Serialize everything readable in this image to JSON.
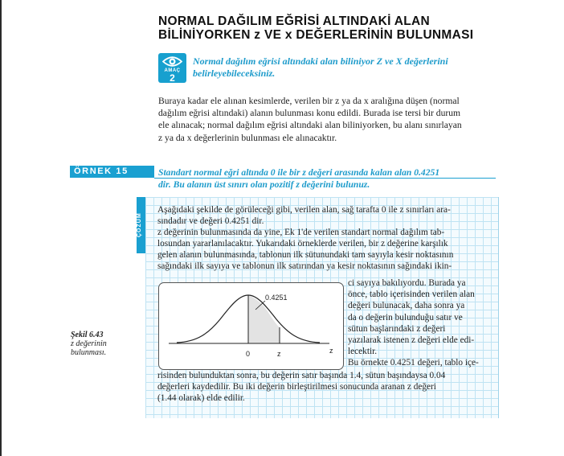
{
  "title": {
    "line1": "NORMAL  DAĞILIM  EĞRİSİ  ALTINDAKİ ALAN",
    "line2": "BİLİNİYORKEN  z  VE  x  DEĞERLERİNİN BULUNMASI"
  },
  "amac": {
    "label": "AMAÇ",
    "number": "2",
    "icon": "eye-icon",
    "line1": "Normal dağılım eğrisi altındaki alan biliniyor  Z ve X değerlerini",
    "line2": "belirleyebileceksiniz."
  },
  "intro": {
    "line1": "Buraya kadar ele alınan kesimlerde, verilen bir z ya da x aralığına düşen (normal",
    "line2": "dağılım eğrisi altındaki) alanın bulunması konu edildi. Burada ise tersi bir durum",
    "line3": "ele alınacak; normal dağılım eğrisi altındaki alan biliniyorken, bu alanı sınırlayan",
    "line4": "z ya da x değerlerinin bulunması ele alınacaktır."
  },
  "ornek": {
    "label": "ÖRNEK  15",
    "line1": "Standart normal eğri altında 0 ile bir  z  değeri arasında kalan alan 0.4251",
    "line2": "dir. Bu alanın üst sınırı olan pozitif  z  değerini bulunuz."
  },
  "cozum": {
    "label": "ÇÖZÜM"
  },
  "solution": {
    "lines_full": [
      "Aşağıdaki şekilde de görüleceği gibi, verilen alan, sağ tarafta 0 ile z sınırları ara-",
      "sındadır ve değeri 0.4251 dir.",
      "z değerinin bulunmasında da yine, Ek 1'de verilen standart normal dağılım tab-",
      "losundan yararlanılacaktır. Yukarıdaki örneklerde verilen, bir z  değerine karşılık",
      "gelen alanın bulunmasında, tablonun ilk sütunundaki tam sayıyla kesir noktasının",
      "sağındaki ilk sayıya ve tablonun ilk satırından ya kesir noktasının sağındaki ikin-"
    ],
    "lines_right": [
      "ci sayıya bakılıyordu. Burada ya",
      "önce, tablo içerisinden verilen alan",
      "değeri bulunacak, daha sonra ya",
      "da o değerin bulunduğu satır ve",
      "sütun  başlarındaki  z  değeri",
      "yazılarak istenen z değeri elde edi-",
      "lecektir.",
      "Bu örnekte 0.4251 değeri, tablo içe-"
    ],
    "lines_bottom": [
      "risinden bulunduktan sonra, bu değerin satır başında 1.4, sütun başındaysa 0.04",
      "değerleri kaydedilir. Bu iki değerin birleştirilmesi sonucunda aranan z  değeri",
      "(1.44 olarak) elde edilir."
    ]
  },
  "figure": {
    "area_label": "0.4251",
    "tick_zero": "0",
    "tick_z": "z",
    "axis_label": "z",
    "shade_color": "#e3e3e3"
  },
  "caption": {
    "title": "Şekil 6.43",
    "line1": "z değerinin",
    "line2": "bulunması."
  },
  "colors": {
    "accent": "#1aa0d1",
    "grid": "#bfe3f3"
  }
}
